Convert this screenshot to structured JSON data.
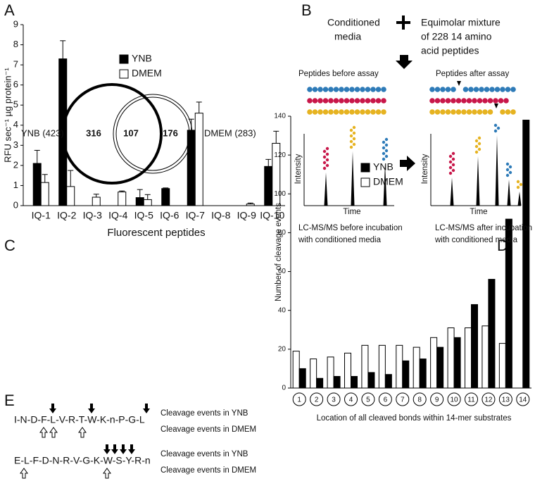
{
  "panel_labels": [
    "A",
    "B",
    "C",
    "D",
    "E"
  ],
  "chart_data": [
    {
      "type": "bar",
      "ylabel": "RFU sec⁻¹ µg protein⁻¹",
      "xlabel": "Fluorescent peptides",
      "categories": [
        "IQ-1",
        "IQ-2",
        "IQ-3",
        "IQ-4",
        "IQ-5",
        "IQ-6",
        "IQ-7",
        "IQ-8",
        "IQ-9",
        "IQ-10"
      ],
      "series": [
        {
          "name": "YNB",
          "color": "#000000",
          "values": [
            2.1,
            7.3,
            0,
            0,
            0.4,
            0.85,
            3.75,
            0,
            0,
            1.95
          ],
          "errors": [
            0.65,
            0.9,
            0,
            0,
            0.4,
            0.03,
            0.55,
            0,
            0,
            0.35
          ]
        },
        {
          "name": "DMEM",
          "color": "#ffffff",
          "values": [
            1.15,
            0.95,
            0.42,
            0.68,
            0.3,
            0,
            4.6,
            0,
            0.08,
            3.1
          ],
          "errors": [
            0.4,
            0.8,
            0.15,
            0.05,
            0.25,
            0,
            0.55,
            0,
            0.05,
            0.6
          ]
        }
      ],
      "ylim": [
        0,
        9
      ],
      "yticks": [
        0,
        1,
        2,
        3,
        4,
        5,
        6,
        7,
        8,
        9
      ],
      "grid": false,
      "legend": "upper center"
    },
    {
      "type": "bar",
      "ylabel": "Number of cleavage events",
      "xlabel": "Location of all cleaved bonds within 14-mer substrates",
      "categories": [
        "1",
        "2",
        "3",
        "4",
        "5",
        "6",
        "7",
        "8",
        "9",
        "10",
        "11",
        "12",
        "13",
        "14"
      ],
      "series": [
        {
          "name": "YNB",
          "color": "#000000",
          "values": [
            10,
            5,
            6,
            6,
            8,
            7,
            14,
            15,
            21,
            26,
            43,
            56,
            87,
            138
          ]
        },
        {
          "name": "DMEM",
          "color": "#ffffff",
          "values": [
            19,
            15,
            16,
            18,
            22,
            22,
            22,
            21,
            26,
            31,
            31,
            32,
            23,
            0
          ]
        }
      ],
      "ylim": [
        0,
        140
      ],
      "yticks": [
        0,
        20,
        40,
        60,
        80,
        100,
        120,
        140
      ],
      "grid": false,
      "legend": "upper left"
    }
  ],
  "workflow": {
    "media_label": [
      "Conditioned",
      "media"
    ],
    "substrate_label": [
      "Equimolar mixture",
      "of 228 14 amino",
      "acid peptides"
    ],
    "before_title": "Peptides before assay",
    "after_title": "Peptides after assay",
    "y_axis": "Intensity",
    "x_axis": "Time",
    "before_caption": [
      "LC-MS/MS before incubation",
      "with conditioned media"
    ],
    "after_caption": [
      "LC-MS/MS after incubation",
      "with conditioned media"
    ]
  },
  "venn": {
    "left_label": "YNB (423)",
    "left_only": 316,
    "overlap": 107,
    "right_only": 176,
    "right_label": "DMEM (283)"
  },
  "sequences": [
    {
      "sequence": "I-N-D-F-L-V-R-T-W-K-n-P-G-L",
      "top_label": "Cleavage events in YNB",
      "bottom_label": "Cleavage events in DMEM"
    },
    {
      "sequence": "E-L-F-D-N-R-V-G-K-W-S-Y-R-n",
      "top_label": "Cleavage events in YNB",
      "bottom_label": "Cleavage events in DMEM"
    }
  ]
}
